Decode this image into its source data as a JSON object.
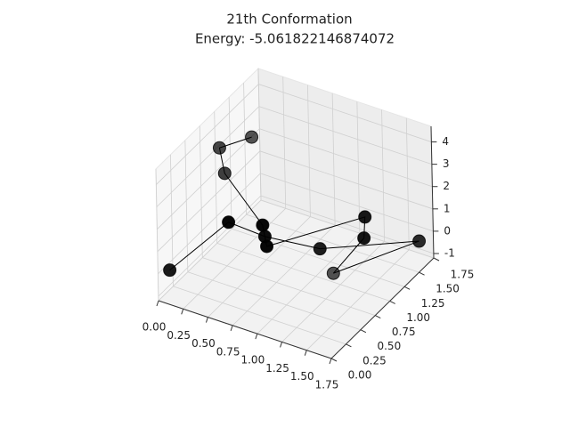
{
  "chart_data": {
    "type": "scatter3d",
    "title": "21th Conformation",
    "subtitle": "Energy: -5.061822146874072",
    "color": "#000000",
    "line_color": "#000000",
    "x": [
      0.18,
      0.02,
      0.08,
      0.59,
      0.61,
      1.3,
      1.28,
      1.32,
      1.72,
      1.03,
      0.52,
      0.31,
      0.06
    ],
    "y": [
      1.32,
      1.04,
      1.02,
      0.8,
      0.83,
      1.35,
      1.36,
      0.77,
      1.56,
      1.03,
      0.95,
      0.69,
      0.1
    ],
    "z": [
      3,
      3,
      2,
      1,
      0,
      1,
      0,
      0,
      0,
      0,
      0,
      1,
      0
    ],
    "xlim": [
      0,
      1.75
    ],
    "ylim": [
      0,
      1.75
    ],
    "zlim": [
      -1.2,
      4.7
    ],
    "xticks": [
      {
        "value": 0,
        "label": "0.00"
      },
      {
        "value": 0.25,
        "label": "0.25"
      },
      {
        "value": 0.5,
        "label": "0.50"
      },
      {
        "value": 0.75,
        "label": "0.75"
      },
      {
        "value": 1,
        "label": "1.00"
      },
      {
        "value": 1.25,
        "label": "1.25"
      },
      {
        "value": 1.5,
        "label": "1.50"
      },
      {
        "value": 1.75,
        "label": "1.75"
      }
    ],
    "yticks": [
      {
        "value": 0,
        "label": "0.00"
      },
      {
        "value": 0.25,
        "label": "0.25"
      },
      {
        "value": 0.5,
        "label": "0.50"
      },
      {
        "value": 0.75,
        "label": "0.75"
      },
      {
        "value": 1,
        "label": "1.00"
      },
      {
        "value": 1.25,
        "label": "1.25"
      },
      {
        "value": 1.5,
        "label": "1.50"
      },
      {
        "value": 1.75,
        "label": "1.75"
      }
    ],
    "zticks": [
      -1,
      0,
      1,
      2,
      3,
      4
    ],
    "grid": true
  }
}
